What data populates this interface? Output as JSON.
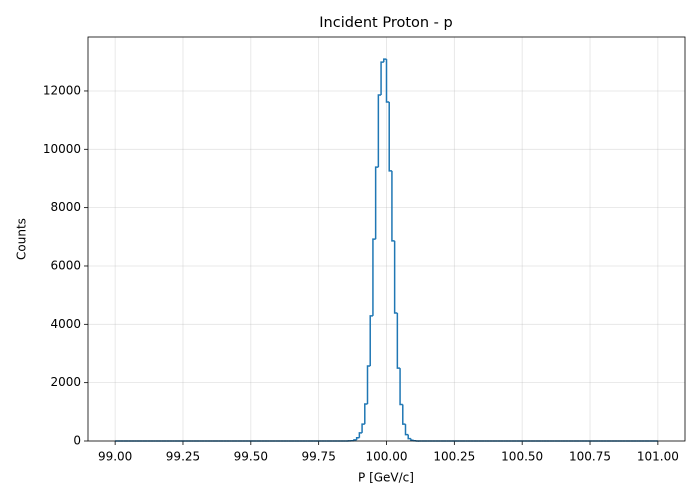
{
  "chart_data": {
    "type": "histogram",
    "title": "Incident Proton - p",
    "x_label": "P [GeV/c]",
    "y_label": "Counts",
    "color": "#1f77b4",
    "grid": true,
    "bins": [
      99.0,
      99.01,
      99.02,
      99.03,
      99.04,
      99.05,
      99.06,
      99.07,
      99.08,
      99.09,
      99.1,
      99.11,
      99.12,
      99.13,
      99.14,
      99.15,
      99.16,
      99.17,
      99.18,
      99.19,
      99.2,
      99.21,
      99.22,
      99.23,
      99.24,
      99.25,
      99.26,
      99.27,
      99.28,
      99.29,
      99.3,
      99.31,
      99.32,
      99.33,
      99.34,
      99.35,
      99.36,
      99.37,
      99.38,
      99.39,
      99.4,
      99.41,
      99.42,
      99.43,
      99.44,
      99.45,
      99.46,
      99.47,
      99.48,
      99.49,
      99.5,
      99.51,
      99.52,
      99.53,
      99.54,
      99.55,
      99.56,
      99.57,
      99.58,
      99.59,
      99.6,
      99.61,
      99.62,
      99.63,
      99.64,
      99.65,
      99.66,
      99.67,
      99.68,
      99.69,
      99.7,
      99.71,
      99.72,
      99.73,
      99.74,
      99.75,
      99.76,
      99.77,
      99.78,
      99.79,
      99.8,
      99.81,
      99.82,
      99.83,
      99.84,
      99.85,
      99.86,
      99.87,
      99.88,
      99.89,
      99.9,
      99.91,
      99.92,
      99.93,
      99.94,
      99.95,
      99.96,
      99.97,
      99.98,
      99.99,
      100.0,
      100.01,
      100.02,
      100.03,
      100.04,
      100.05,
      100.06,
      100.07,
      100.08,
      100.09,
      100.1,
      100.11,
      100.12,
      100.13,
      100.14,
      100.15,
      100.16,
      100.17,
      100.18,
      100.19,
      100.2,
      100.21,
      100.22,
      100.23,
      100.24,
      100.25,
      100.26,
      100.27,
      100.28,
      100.29,
      100.3,
      100.31,
      100.32,
      100.33,
      100.34,
      100.35,
      100.36,
      100.37,
      100.38,
      100.39,
      100.4,
      100.41,
      100.42,
      100.43,
      100.44,
      100.45,
      100.46,
      100.47,
      100.48,
      100.49,
      100.5,
      100.51,
      100.52,
      100.53,
      100.54,
      100.55,
      100.56,
      100.57,
      100.58,
      100.59,
      100.6,
      100.61,
      100.62,
      100.63,
      100.64,
      100.65,
      100.66,
      100.67,
      100.68,
      100.69,
      100.7,
      100.71,
      100.72,
      100.73,
      100.74,
      100.75,
      100.76,
      100.77,
      100.78,
      100.79,
      100.8,
      100.81,
      100.82,
      100.83,
      100.84,
      100.85,
      100.86,
      100.87,
      100.88,
      100.89,
      100.9,
      100.91,
      100.92,
      100.93,
      100.94,
      100.95,
      100.96,
      100.97,
      100.98,
      100.99,
      101.0
    ],
    "values": [
      0,
      0,
      0,
      0,
      0,
      0,
      0,
      0,
      0,
      0,
      0,
      0,
      0,
      0,
      0,
      0,
      0,
      0,
      0,
      0,
      0,
      0,
      0,
      0,
      0,
      0,
      0,
      0,
      0,
      0,
      0,
      0,
      0,
      0,
      0,
      0,
      0,
      0,
      0,
      0,
      0,
      0,
      0,
      0,
      0,
      0,
      0,
      0,
      0,
      0,
      0,
      0,
      0,
      0,
      0,
      0,
      0,
      0,
      0,
      0,
      0,
      0,
      0,
      0,
      0,
      0,
      0,
      0,
      0,
      0,
      0,
      0,
      0,
      0,
      0,
      0,
      0,
      0,
      0,
      0,
      0,
      0,
      0,
      0,
      0,
      0,
      3,
      10,
      40,
      110,
      280,
      580,
      1270,
      2570,
      4290,
      6920,
      9390,
      11860,
      12990,
      13090,
      11620,
      9260,
      6860,
      4390,
      2500,
      1250,
      580,
      220,
      80,
      25,
      8,
      2,
      0,
      0,
      0,
      0,
      0,
      0,
      0,
      0,
      0,
      0,
      0,
      0,
      0,
      0,
      0,
      0,
      0,
      0,
      0,
      0,
      0,
      0,
      0,
      0,
      0,
      0,
      0,
      0,
      0,
      0,
      0,
      0,
      0,
      0,
      0,
      0,
      0,
      0,
      0,
      0,
      0,
      0,
      0,
      0,
      0,
      0,
      0,
      0,
      0,
      0,
      0,
      0,
      0,
      0,
      0,
      0,
      0,
      0,
      0,
      0,
      0,
      0,
      0,
      0,
      0,
      0,
      0,
      0,
      0,
      0,
      0,
      0,
      0,
      0,
      0,
      0,
      0,
      0,
      0,
      0,
      0,
      0,
      0,
      0,
      0,
      0,
      0,
      0
    ],
    "xlim": [
      98.9,
      101.1
    ],
    "ylim": [
      0,
      13850
    ],
    "xticks": [
      {
        "value": 99.0,
        "label": "99.00"
      },
      {
        "value": 99.25,
        "label": "99.25"
      },
      {
        "value": 99.5,
        "label": "99.50"
      },
      {
        "value": 99.75,
        "label": "99.75"
      },
      {
        "value": 100.0,
        "label": "100.00"
      },
      {
        "value": 100.25,
        "label": "100.25"
      },
      {
        "value": 100.5,
        "label": "100.50"
      },
      {
        "value": 100.75,
        "label": "100.75"
      },
      {
        "value": 101.0,
        "label": "101.00"
      }
    ],
    "yticks": [
      0,
      2000,
      4000,
      6000,
      8000,
      10000,
      12000
    ]
  }
}
